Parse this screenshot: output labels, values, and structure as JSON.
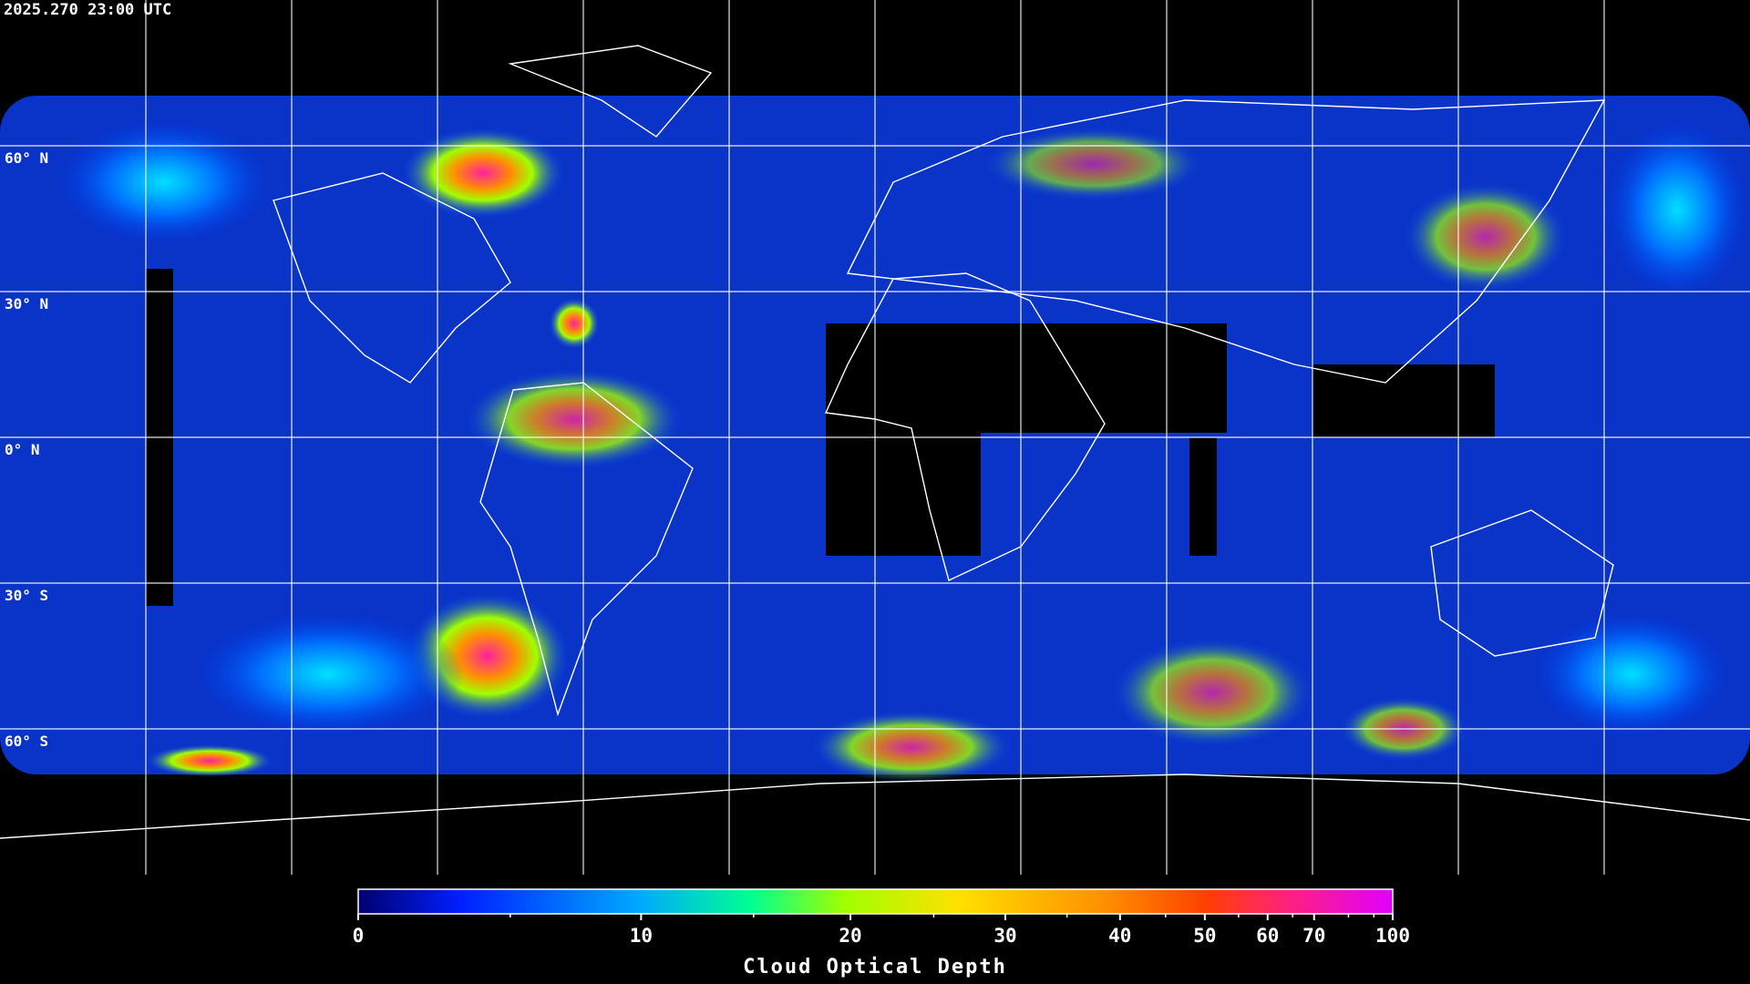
{
  "header": {
    "timestamp": "2025.270 23:00 UTC"
  },
  "map": {
    "lon_range": [
      -180,
      180
    ],
    "lat_range": [
      90,
      -90
    ],
    "meridians": [
      -150,
      -120,
      -90,
      -60,
      -30,
      0,
      30,
      60,
      90,
      120,
      150
    ],
    "parallels": [
      {
        "value": 60,
        "label": "60° N"
      },
      {
        "value": 30,
        "label": "30° N"
      },
      {
        "value": 0,
        "label": "0° N"
      },
      {
        "value": -30,
        "label": "30° S"
      },
      {
        "value": -60,
        "label": "60° S"
      }
    ]
  },
  "colorbar": {
    "label": "Cloud Optical Depth",
    "range": [
      0,
      100
    ],
    "ticks": [
      0,
      10,
      20,
      30,
      40,
      50,
      60,
      70,
      100
    ],
    "minor_ticks": [
      5,
      15,
      25,
      35,
      45,
      55,
      65,
      80,
      90
    ]
  }
}
